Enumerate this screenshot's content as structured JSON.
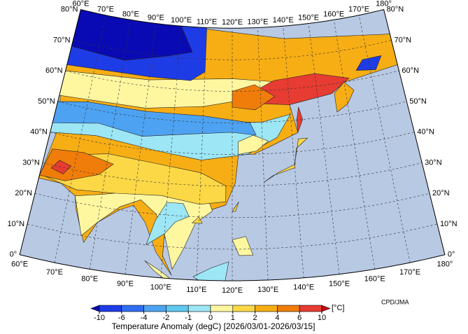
{
  "map": {
    "longitude_labels": [
      "60°E",
      "70°E",
      "80°E",
      "90°E",
      "100°E",
      "110°E",
      "120°E",
      "130°E",
      "140°E",
      "150°E",
      "160°E",
      "170°E",
      "180°"
    ],
    "latitude_labels": [
      "0°",
      "10°N",
      "20°N",
      "30°N",
      "40°N",
      "50°N",
      "60°N",
      "70°N",
      "80°N"
    ],
    "credit": "CPD/JMA"
  },
  "colorbar": {
    "ticks": [
      -10,
      -6,
      -4,
      -2,
      -1,
      0,
      1,
      2,
      4,
      6,
      10
    ],
    "colors": [
      "#0a0ab4",
      "#1e3ce6",
      "#2f6ef2",
      "#4ea2f2",
      "#5fc8f0",
      "#9ce6f5",
      "#fff7a0",
      "#fcd846",
      "#f7ae14",
      "#f07d0a",
      "#e63c32",
      "#c80a14"
    ],
    "unit": "[°C]",
    "title": "Temperature Anomaly (degC) [2026/03/01-2026/03/15]"
  }
}
